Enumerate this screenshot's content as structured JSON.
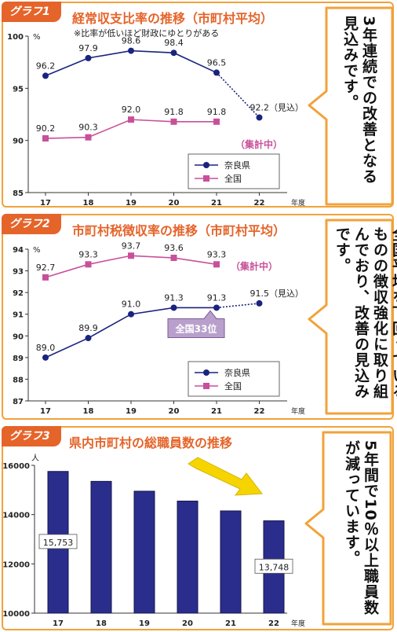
{
  "graph1": {
    "tag": "グラフ1",
    "title": "経常収支比率の推移（市町村平均）",
    "note": "※比率が低いほど財政にゆとりがある",
    "unit": "%",
    "xunit": "年度",
    "status_label": "（集計中）",
    "forecast_label": "92.2（見込）",
    "callout": "3年連続での改善となる見込みです。"
  },
  "graph2": {
    "tag": "グラフ2",
    "title": "市町村税徴収率の推移（市町村平均）",
    "unit": "%",
    "xunit": "年度",
    "status_label": "（集計中）",
    "forecast_label": "91.5（見込）",
    "rank_label": "全国33位",
    "callout": "全国平均を下回っているものの徴収強化に取り組んでおり、改善の見込みです。"
  },
  "graph3": {
    "tag": "グラフ3",
    "title": "県内市町村の総職員数の推移",
    "unit": "人",
    "xunit": "年度",
    "callout": "5年間で10％以上職員数が減っています。"
  },
  "colors": {
    "frame": "#f2a23a",
    "tag": "#e5642a",
    "nara": "#1a237e",
    "national": "#c8509a",
    "bar": "#2b2d8c",
    "arrow": "#f6d400",
    "rank_box": "#b9a0cc"
  },
  "chart_data": [
    {
      "type": "line",
      "categories": [
        "17",
        "18",
        "19",
        "20",
        "21",
        "22"
      ],
      "series": [
        {
          "name": "奈良県",
          "values": [
            96.2,
            97.9,
            98.6,
            98.4,
            96.5,
            92.2
          ],
          "labels": [
            "96.2",
            "97.9",
            "98.6",
            "98.4",
            "96.5",
            ""
          ]
        },
        {
          "name": "全国",
          "values": [
            90.2,
            90.3,
            92.0,
            91.8,
            91.8,
            null
          ],
          "labels": [
            "90.2",
            "90.3",
            "92.0",
            "91.8",
            "91.8",
            ""
          ]
        }
      ],
      "ylim": [
        85,
        100
      ],
      "yticks": [
        "85",
        "90",
        "95",
        "100"
      ],
      "grid": false,
      "legend": "bottom-right"
    },
    {
      "type": "line",
      "categories": [
        "17",
        "18",
        "19",
        "20",
        "21",
        "22"
      ],
      "series": [
        {
          "name": "奈良県",
          "values": [
            89.0,
            89.9,
            91.0,
            91.3,
            91.3,
            91.5
          ],
          "labels": [
            "89.0",
            "89.9",
            "91.0",
            "91.3",
            "91.3",
            ""
          ]
        },
        {
          "name": "全国",
          "values": [
            92.7,
            93.3,
            93.7,
            93.6,
            93.3,
            null
          ],
          "labels": [
            "92.7",
            "93.3",
            "93.7",
            "93.6",
            "93.3",
            ""
          ]
        }
      ],
      "ylim": [
        87,
        94
      ],
      "yticks": [
        "87",
        "88",
        "89",
        "90",
        "91",
        "92",
        "93",
        "94"
      ],
      "grid": false,
      "legend": "bottom-right"
    },
    {
      "type": "bar",
      "categories": [
        "17",
        "18",
        "19",
        "20",
        "21",
        "22"
      ],
      "values": [
        15753,
        15350,
        14950,
        14550,
        14150,
        13748
      ],
      "labels": [
        "15,753",
        "",
        "",
        "",
        "",
        "13,748"
      ],
      "ylim": [
        10000,
        16000
      ],
      "yticks": [
        "10000",
        "12000",
        "14000",
        "16000"
      ],
      "grid": false
    }
  ]
}
